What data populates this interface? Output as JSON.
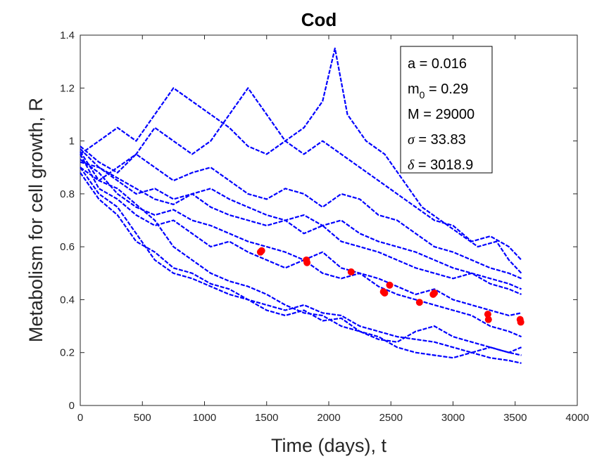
{
  "chart_data": {
    "type": "line",
    "title": "Cod",
    "xlabel": "Time (days), t",
    "ylabel": "Metabolism for cell growth, R",
    "xlim": [
      0,
      4000
    ],
    "ylim": [
      0,
      1.4
    ],
    "xticks": [
      0,
      500,
      1000,
      1500,
      2000,
      2500,
      3000,
      3500,
      4000
    ],
    "yticks": [
      0,
      0.2,
      0.4,
      0.6,
      0.8,
      1,
      1.2,
      1.4
    ],
    "xtick_labels": [
      "0",
      "500",
      "1000",
      "1500",
      "2000",
      "2500",
      "3000",
      "3500",
      "4000"
    ],
    "ytick_labels": [
      "0",
      "0.2",
      "0.4",
      "0.6",
      "0.8",
      "1",
      "1.2",
      "1.4"
    ],
    "grid": false,
    "line_color": "#0000ff",
    "marker_color": "#ff0000",
    "series": [
      {
        "x": [
          0,
          150,
          300,
          450,
          600,
          750,
          900,
          1050,
          1200,
          1350,
          1500,
          1650,
          1800,
          1950,
          2050,
          2150,
          2300,
          2450,
          2600,
          2750,
          2900,
          3050,
          3200,
          3350,
          3450,
          3550
        ],
        "values": [
          0.95,
          1.0,
          1.05,
          1.0,
          1.1,
          1.2,
          1.15,
          1.1,
          1.05,
          0.98,
          0.95,
          1.0,
          1.05,
          1.15,
          1.35,
          1.1,
          1.0,
          0.95,
          0.85,
          0.75,
          0.7,
          0.65,
          0.6,
          0.62,
          0.55,
          0.5
        ]
      },
      {
        "x": [
          0,
          150,
          300,
          450,
          600,
          750,
          900,
          1050,
          1200,
          1350,
          1500,
          1650,
          1800,
          1950,
          2100,
          2250,
          2400,
          2550,
          2700,
          2850,
          3000,
          3150,
          3300,
          3450,
          3550
        ],
        "values": [
          0.9,
          0.85,
          0.9,
          0.95,
          1.05,
          1.0,
          0.95,
          1.0,
          1.1,
          1.2,
          1.1,
          1.0,
          0.95,
          1.0,
          0.95,
          0.9,
          0.85,
          0.8,
          0.75,
          0.7,
          0.68,
          0.62,
          0.64,
          0.6,
          0.55
        ]
      },
      {
        "x": [
          0,
          150,
          300,
          450,
          600,
          750,
          900,
          1050,
          1200,
          1350,
          1500,
          1650,
          1800,
          1950,
          2100,
          2250,
          2400,
          2550,
          2700,
          2850,
          3000,
          3150,
          3300,
          3450,
          3550
        ],
        "values": [
          0.98,
          0.92,
          0.88,
          0.95,
          0.9,
          0.85,
          0.88,
          0.9,
          0.85,
          0.8,
          0.78,
          0.82,
          0.8,
          0.75,
          0.8,
          0.78,
          0.72,
          0.7,
          0.65,
          0.6,
          0.58,
          0.55,
          0.52,
          0.5,
          0.48
        ]
      },
      {
        "x": [
          0,
          150,
          300,
          450,
          600,
          750,
          900,
          1050,
          1200,
          1350,
          1500,
          1650,
          1800,
          1950,
          2100,
          2250,
          2400,
          2550,
          2700,
          2850,
          3000,
          3150,
          3300,
          3450,
          3550
        ],
        "values": [
          0.92,
          0.9,
          0.85,
          0.8,
          0.82,
          0.78,
          0.8,
          0.75,
          0.72,
          0.7,
          0.68,
          0.7,
          0.65,
          0.68,
          0.62,
          0.6,
          0.58,
          0.55,
          0.52,
          0.5,
          0.48,
          0.5,
          0.46,
          0.44,
          0.42
        ]
      },
      {
        "x": [
          0,
          150,
          300,
          450,
          600,
          750,
          900,
          1050,
          1200,
          1350,
          1500,
          1650,
          1800,
          1950,
          2100,
          2250,
          2400,
          2550,
          2700,
          2850,
          3000,
          3150,
          3300,
          3450,
          3550
        ],
        "values": [
          0.95,
          0.82,
          0.78,
          0.72,
          0.68,
          0.7,
          0.65,
          0.6,
          0.62,
          0.58,
          0.55,
          0.52,
          0.55,
          0.5,
          0.48,
          0.5,
          0.45,
          0.42,
          0.4,
          0.38,
          0.36,
          0.34,
          0.3,
          0.28,
          0.26
        ]
      },
      {
        "x": [
          0,
          150,
          300,
          450,
          600,
          750,
          900,
          1050,
          1200,
          1350,
          1500,
          1650,
          1800,
          1950,
          2100,
          2250,
          2400,
          2550,
          2700,
          2850,
          3000,
          3150,
          3300,
          3450,
          3550
        ],
        "values": [
          0.9,
          0.8,
          0.75,
          0.65,
          0.55,
          0.5,
          0.48,
          0.45,
          0.42,
          0.4,
          0.38,
          0.36,
          0.38,
          0.35,
          0.34,
          0.3,
          0.28,
          0.26,
          0.25,
          0.24,
          0.22,
          0.2,
          0.22,
          0.2,
          0.19
        ]
      },
      {
        "x": [
          0,
          150,
          300,
          450,
          600,
          750,
          900,
          1050,
          1200,
          1350,
          1500,
          1650,
          1800,
          1950,
          2100,
          2250,
          2400,
          2550,
          2700,
          2850,
          3000,
          3150,
          3300,
          3450,
          3550
        ],
        "values": [
          0.88,
          0.78,
          0.72,
          0.62,
          0.58,
          0.52,
          0.5,
          0.46,
          0.44,
          0.4,
          0.36,
          0.34,
          0.36,
          0.32,
          0.33,
          0.28,
          0.26,
          0.22,
          0.2,
          0.19,
          0.18,
          0.2,
          0.18,
          0.17,
          0.16
        ]
      },
      {
        "x": [
          0,
          150,
          300,
          450,
          600,
          750,
          900,
          1050,
          1200,
          1350,
          1500,
          1650,
          1800,
          1950,
          2100,
          2250,
          2400,
          2550,
          2700,
          2850,
          3000,
          3150,
          3300,
          3450,
          3550
        ],
        "values": [
          0.96,
          0.85,
          0.82,
          0.76,
          0.7,
          0.6,
          0.55,
          0.5,
          0.47,
          0.45,
          0.42,
          0.38,
          0.35,
          0.34,
          0.3,
          0.28,
          0.25,
          0.24,
          0.28,
          0.3,
          0.26,
          0.24,
          0.22,
          0.2,
          0.22
        ]
      },
      {
        "x": [
          0,
          150,
          300,
          450,
          600,
          750,
          900,
          1050,
          1200,
          1350,
          1500,
          1650,
          1800,
          1950,
          2100,
          2250,
          2400,
          2550,
          2700,
          2850,
          3000,
          3150,
          3300,
          3450,
          3550
        ],
        "values": [
          0.93,
          0.88,
          0.8,
          0.75,
          0.72,
          0.74,
          0.7,
          0.68,
          0.65,
          0.62,
          0.6,
          0.58,
          0.55,
          0.58,
          0.52,
          0.5,
          0.48,
          0.45,
          0.42,
          0.44,
          0.4,
          0.38,
          0.36,
          0.34,
          0.35
        ]
      },
      {
        "x": [
          0,
          150,
          300,
          450,
          600,
          750,
          900,
          1050,
          1200,
          1350,
          1500,
          1650,
          1800,
          1950,
          2100,
          2250,
          2400,
          2550,
          2700,
          2850,
          3000,
          3150,
          3300,
          3450,
          3550
        ],
        "values": [
          0.97,
          0.9,
          0.86,
          0.82,
          0.78,
          0.76,
          0.8,
          0.82,
          0.78,
          0.75,
          0.72,
          0.7,
          0.72,
          0.68,
          0.7,
          0.65,
          0.62,
          0.6,
          0.58,
          0.55,
          0.52,
          0.5,
          0.48,
          0.46,
          0.44
        ]
      }
    ],
    "markers": {
      "x": [
        1450,
        1460,
        1820,
        1825,
        2180,
        2440,
        2450,
        2490,
        2730,
        2840,
        2850,
        3280,
        3285,
        3540,
        3545
      ],
      "values": [
        0.58,
        0.585,
        0.55,
        0.54,
        0.505,
        0.43,
        0.425,
        0.455,
        0.39,
        0.42,
        0.425,
        0.345,
        0.325,
        0.325,
        0.315
      ]
    },
    "legend_box": {
      "placement": "top-right",
      "entries": [
        {
          "label": "a",
          "value": "= 0.016"
        },
        {
          "label": "m",
          "sub": "0",
          "value": "= 0.29"
        },
        {
          "label": "M",
          "value": "= 29000"
        },
        {
          "label": "σ",
          "value": "= 33.83",
          "greek": true
        },
        {
          "label": "δ",
          "value": "= 3018.9",
          "greek": true
        }
      ]
    }
  }
}
